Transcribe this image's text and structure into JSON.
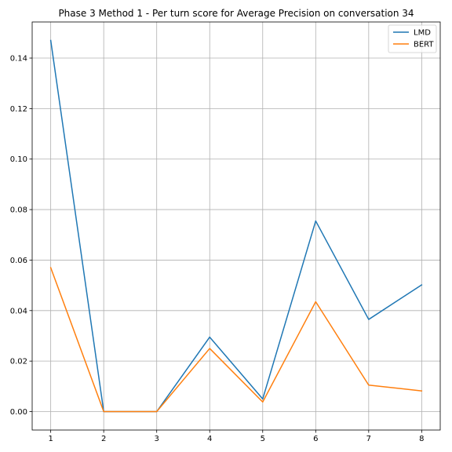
{
  "chart_data": {
    "type": "line",
    "title": "Phase 3 Method 1 - Per turn score for Average Precision on conversation 34",
    "xlabel": "",
    "ylabel": "",
    "x": [
      1,
      2,
      3,
      4,
      5,
      6,
      7,
      8
    ],
    "x_ticks": [
      "1",
      "2",
      "3",
      "4",
      "5",
      "6",
      "7",
      "8"
    ],
    "y_ticks": [
      "0.00",
      "0.02",
      "0.04",
      "0.06",
      "0.08",
      "0.10",
      "0.12",
      "0.14"
    ],
    "xlim": [
      0.65,
      8.35
    ],
    "ylim": [
      -0.0073,
      0.1543
    ],
    "grid": true,
    "legend_position": "top-right",
    "series": [
      {
        "name": "LMD",
        "color": "#1f77b4",
        "values": [
          0.147,
          0.0,
          0.0,
          0.0295,
          0.005,
          0.0755,
          0.0365,
          0.0502
        ]
      },
      {
        "name": "BERT",
        "color": "#ff7f0e",
        "values": [
          0.057,
          0.0,
          0.0,
          0.025,
          0.0038,
          0.0435,
          0.0105,
          0.0082
        ]
      }
    ]
  }
}
